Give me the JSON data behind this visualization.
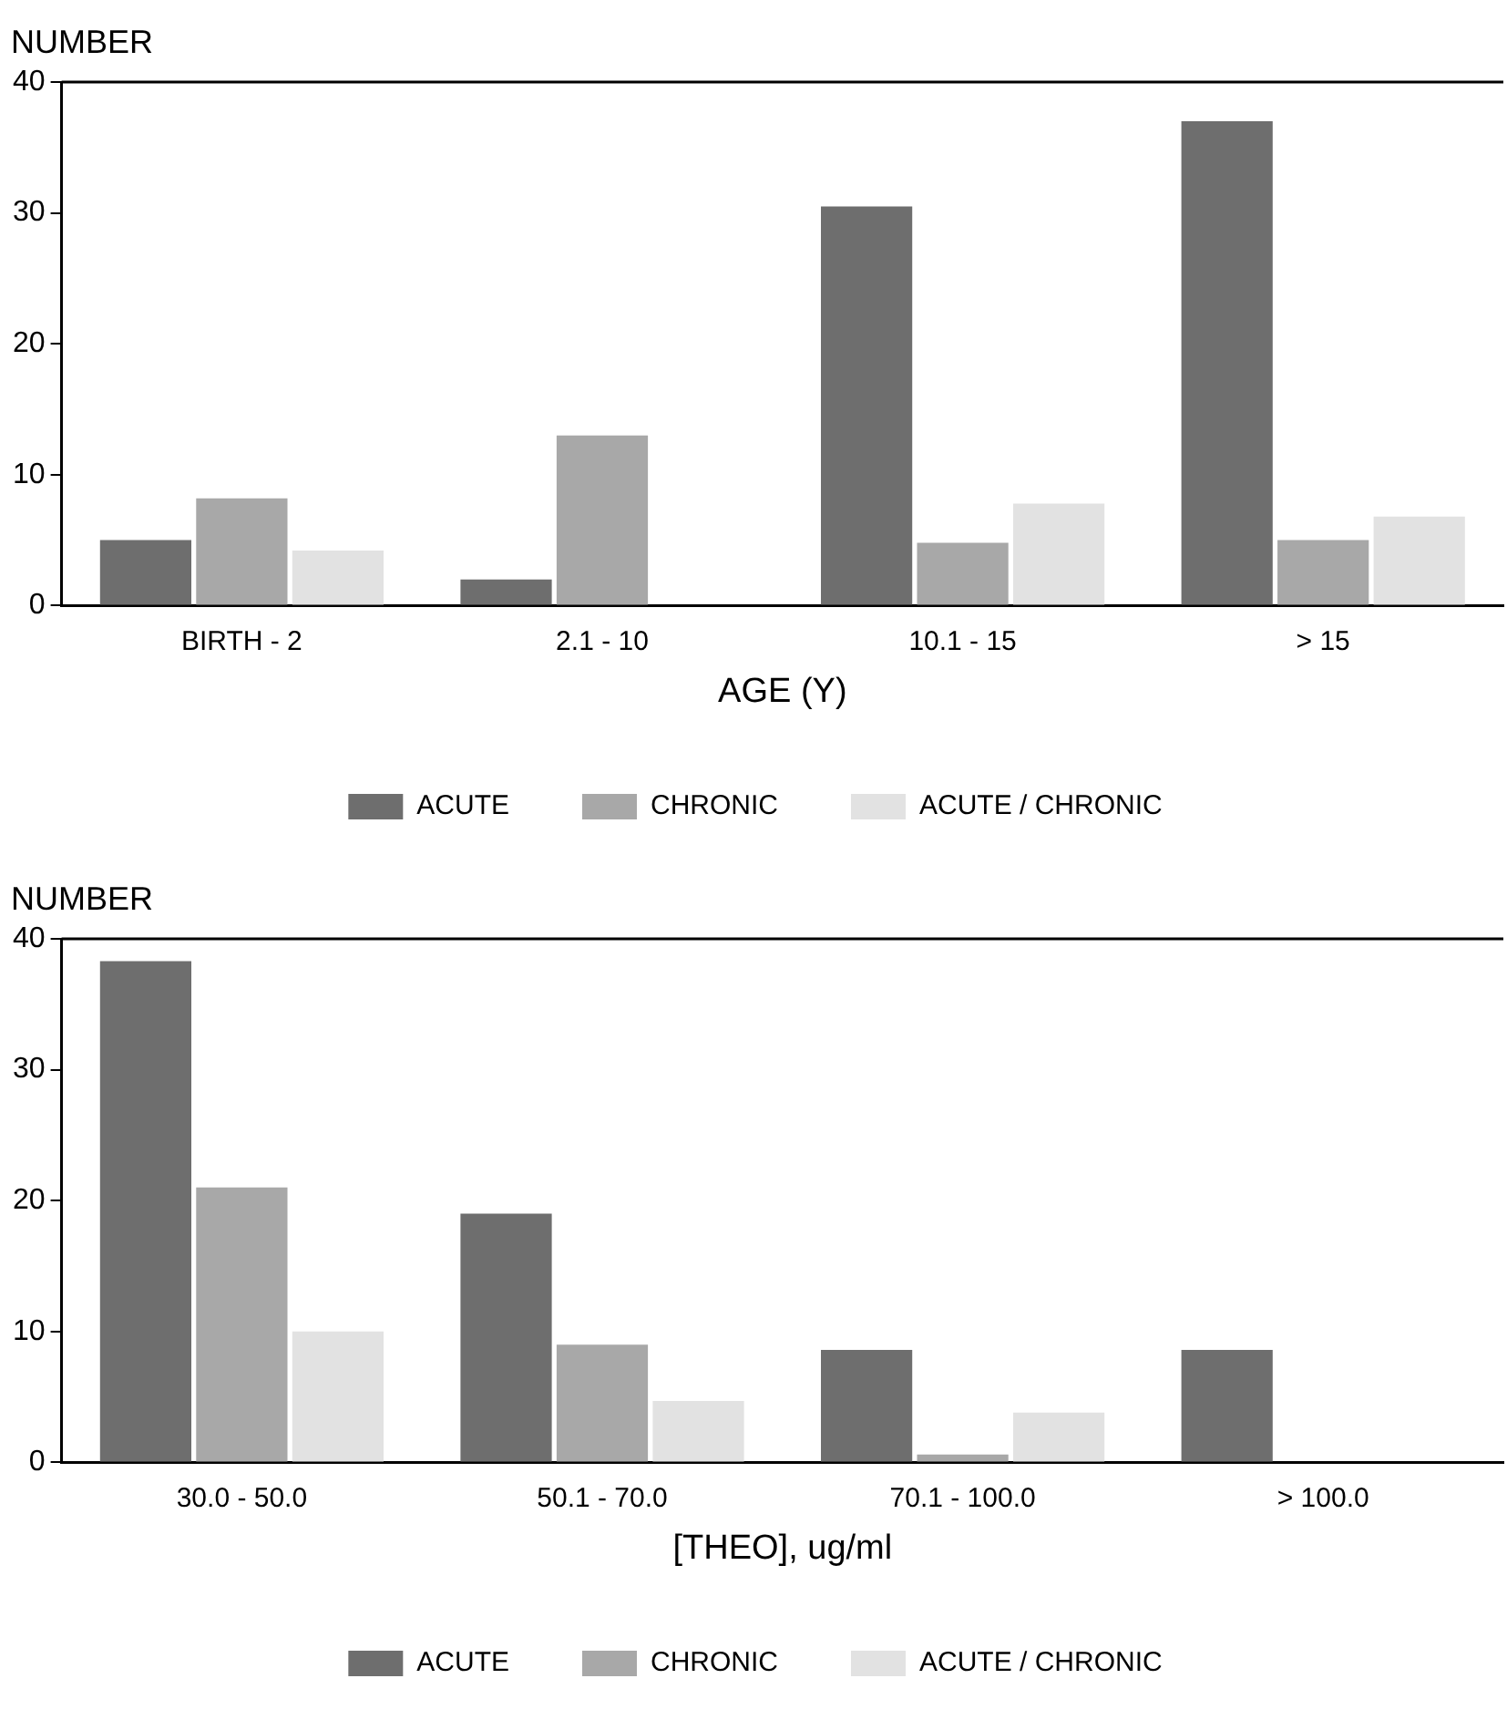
{
  "chart_data": [
    {
      "type": "bar",
      "ylabel": "NUMBER",
      "xlabel": "AGE (Y)",
      "categories": [
        "BIRTH - 2",
        "2.1 - 10",
        "10.1 - 15",
        "> 15"
      ],
      "series": [
        {
          "name": "ACUTE",
          "color": "#6e6e6e",
          "values": [
            5,
            2,
            30.5,
            37
          ]
        },
        {
          "name": "CHRONIC",
          "color": "#a8a8a8",
          "values": [
            8.2,
            13,
            4.8,
            5
          ]
        },
        {
          "name": "ACUTE / CHRONIC",
          "color": "#e2e2e2",
          "values": [
            4.2,
            null,
            7.8,
            6.8
          ]
        }
      ],
      "ylim": [
        0,
        40
      ],
      "yticks": [
        0,
        10,
        20,
        30,
        40
      ],
      "grid": false,
      "legend": "bottom"
    },
    {
      "type": "bar",
      "ylabel": "NUMBER",
      "xlabel": "[THEO], ug/ml",
      "categories": [
        "30.0 - 50.0",
        "50.1 - 70.0",
        "70.1 - 100.0",
        "> 100.0"
      ],
      "series": [
        {
          "name": "ACUTE",
          "color": "#6e6e6e",
          "values": [
            38.3,
            19,
            8.6,
            8.6
          ]
        },
        {
          "name": "CHRONIC",
          "color": "#a8a8a8",
          "values": [
            21,
            9,
            0.6,
            null
          ]
        },
        {
          "name": "ACUTE / CHRONIC",
          "color": "#e2e2e2",
          "values": [
            10,
            4.7,
            3.8,
            null
          ]
        }
      ],
      "ylim": [
        0,
        40
      ],
      "yticks": [
        0,
        10,
        20,
        30,
        40
      ],
      "grid": false,
      "legend": "bottom"
    }
  ]
}
